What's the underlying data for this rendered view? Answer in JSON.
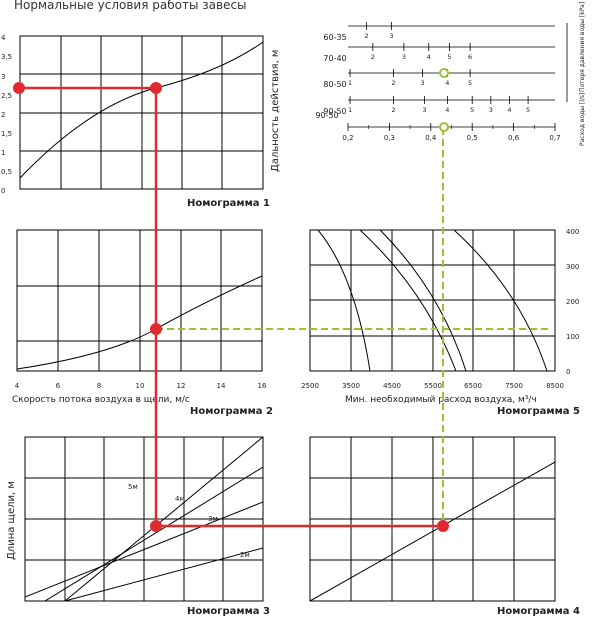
{
  "title": "Нормальные условия работы завесы",
  "colors": {
    "red": "#e02a2f",
    "green": "#9bc434",
    "grid": "#000000"
  },
  "nomogram1": {
    "label": "Номограмма 1",
    "y_axis_label": "Дальность действия, м",
    "y_ticks": [
      "0",
      "0,5",
      "1",
      "1,5",
      "2",
      "2,5",
      "3",
      "3,5",
      "4"
    ]
  },
  "nomogram2": {
    "label": "Номограмма 2",
    "x_axis_label": "Скорость потока воздуха в щели, м/с",
    "x_ticks": [
      "4",
      "6",
      "8",
      "10",
      "12",
      "14",
      "16"
    ]
  },
  "nomogram3": {
    "label": "Номограмма 3",
    "y_axis_label": "Длина щели, м",
    "curve_labels": [
      "5м",
      "4м",
      "3м",
      "2м"
    ]
  },
  "nomogram4": {
    "label": "Номограмма 4"
  },
  "nomogram5": {
    "label": "Номограмма 5",
    "x_axis_label": "Мин. необходимый расход воздуха, м³/ч",
    "x_ticks": [
      "2500",
      "3500",
      "4500",
      "5500",
      "6500",
      "7500",
      "8500"
    ],
    "y_ticks": [
      "0",
      "100",
      "200",
      "300",
      "400"
    ]
  },
  "water_chart": {
    "rows": [
      {
        "label": "60-35",
        "ticks": [
          {
            "label": "2",
            "v": 0.245
          },
          {
            "label": "3",
            "v": 0.305
          }
        ]
      },
      {
        "label": "70-40",
        "ticks": [
          {
            "label": "2",
            "v": 0.26
          },
          {
            "label": "3",
            "v": 0.335
          },
          {
            "label": "4",
            "v": 0.395
          },
          {
            "label": "5",
            "v": 0.445
          },
          {
            "label": "6",
            "v": 0.495
          }
        ]
      },
      {
        "label": "80-50",
        "ticks": [
          {
            "label": "1",
            "v": 0.205
          },
          {
            "label": "2",
            "v": 0.31
          },
          {
            "label": "3",
            "v": 0.38
          },
          {
            "label": "4",
            "v": 0.44
          },
          {
            "label": "5",
            "v": 0.495
          }
        ]
      },
      {
        "label": "90-50",
        "ticks": [
          {
            "label": "1",
            "v": 0.205
          },
          {
            "label": "2",
            "v": 0.31
          },
          {
            "label": "3",
            "v": 0.385
          },
          {
            "label": "4",
            "v": 0.44
          },
          {
            "label": "5",
            "v": 0.5
          },
          {
            "label": "3",
            "v": 0.545
          },
          {
            "label": "4",
            "v": 0.59
          },
          {
            "label": "5",
            "v": 0.635
          }
        ]
      }
    ],
    "flow_ticks": [
      "0,2",
      "0,3",
      "0,4",
      "0,5",
      "0,6",
      "0,7"
    ],
    "right_label_1": "Потеря давления воды [kPa]",
    "right_label_2": "Расход воды [l/s]"
  }
}
